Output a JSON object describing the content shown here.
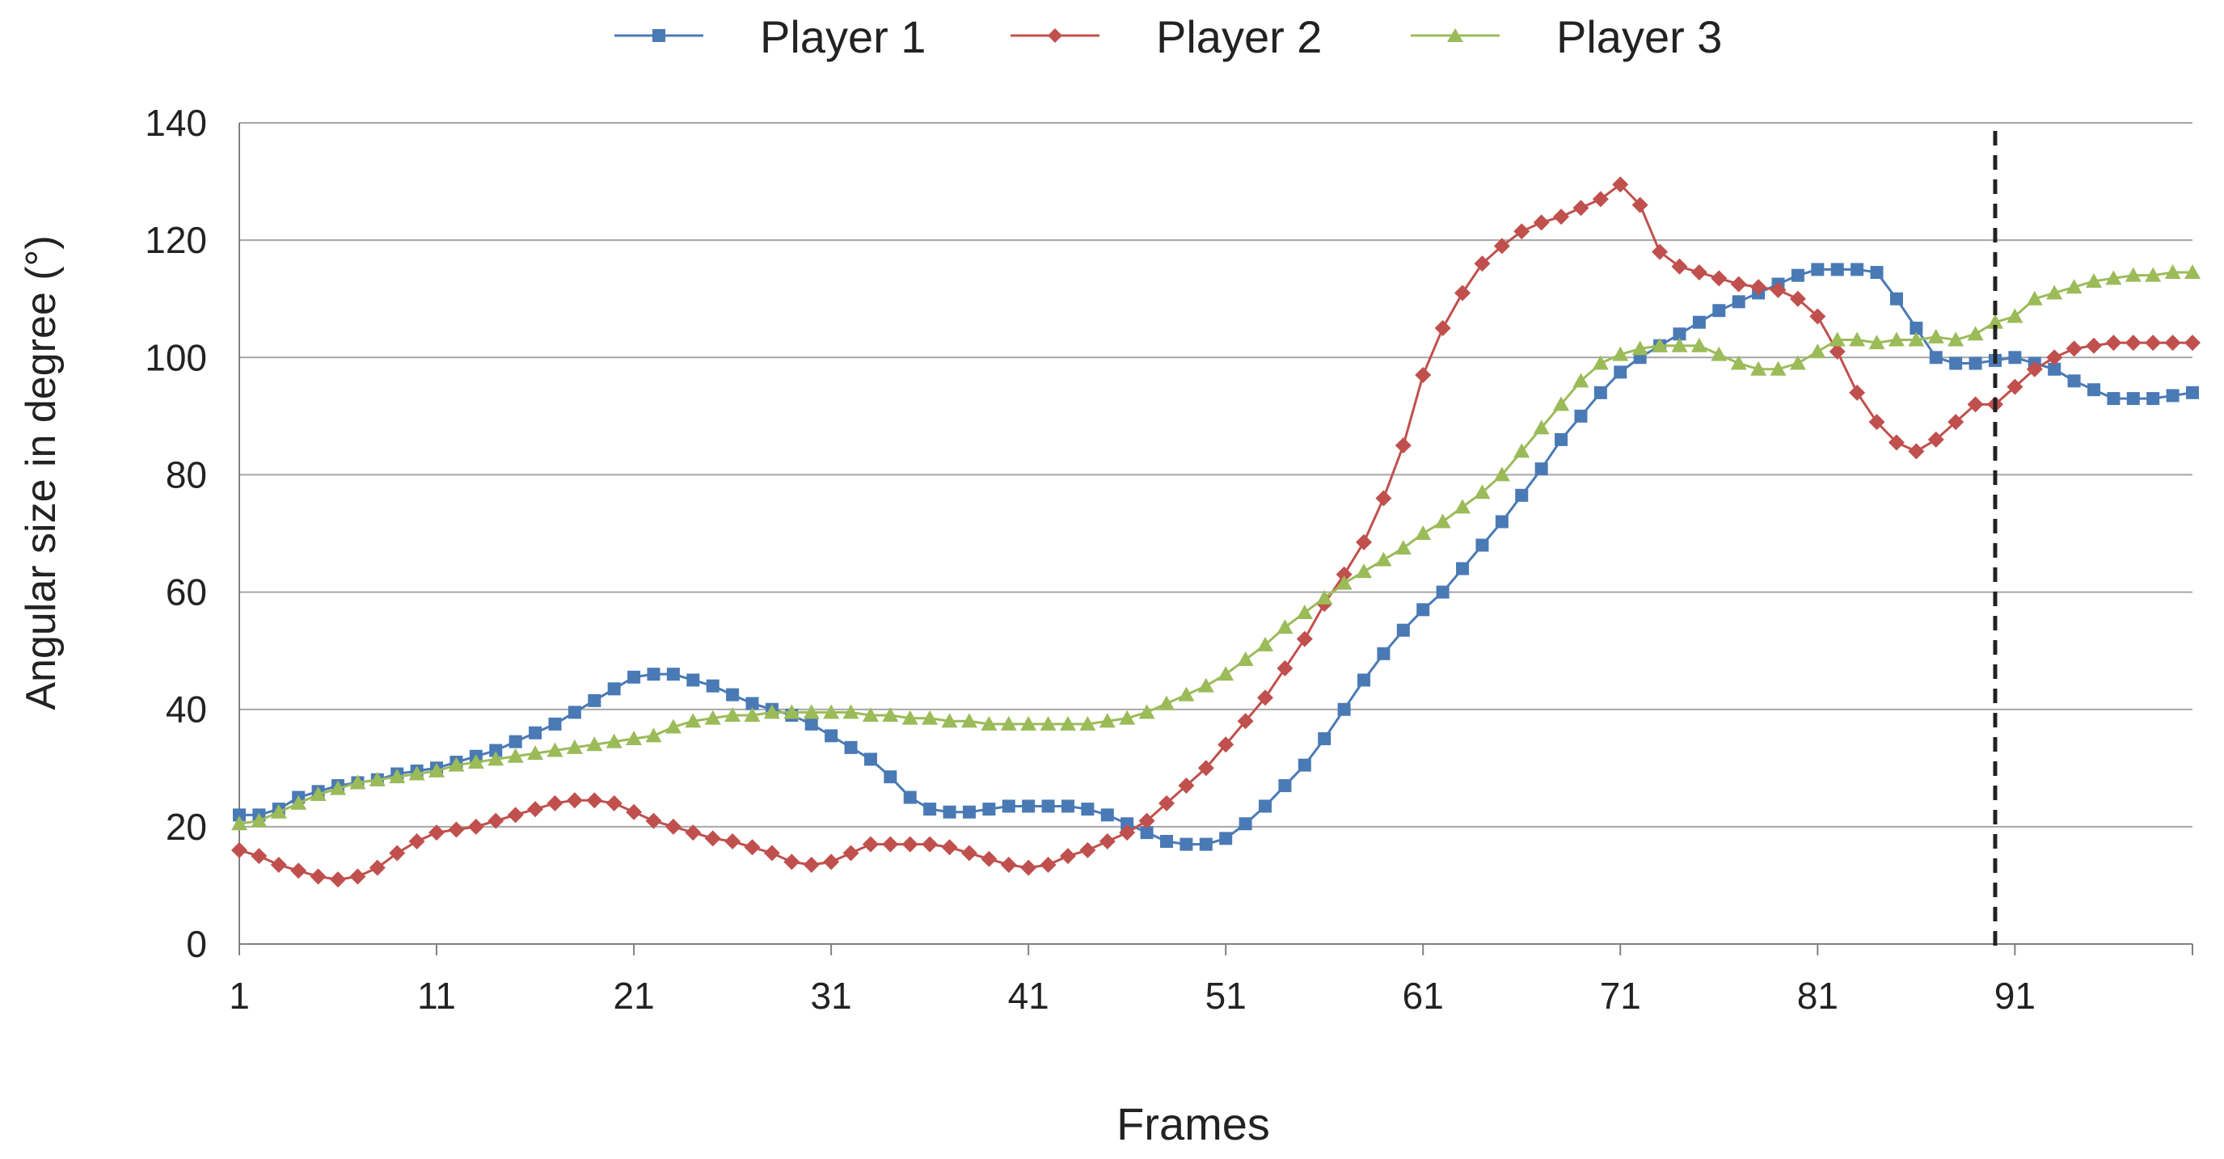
{
  "chart_data": {
    "type": "line",
    "xlabel": "Frames",
    "ylabel": "Angular size in degree (°)",
    "ylim": [
      0,
      140
    ],
    "xlim": [
      1,
      100
    ],
    "yticks": [
      0,
      20,
      40,
      60,
      80,
      100,
      120,
      140
    ],
    "xticks": [
      1,
      11,
      21,
      31,
      41,
      51,
      61,
      71,
      81,
      91
    ],
    "grid": "horizontal",
    "legend_position": "top-center",
    "vline_x": 90,
    "x": [
      1,
      2,
      3,
      4,
      5,
      6,
      7,
      8,
      9,
      10,
      11,
      12,
      13,
      14,
      15,
      16,
      17,
      18,
      19,
      20,
      21,
      22,
      23,
      24,
      25,
      26,
      27,
      28,
      29,
      30,
      31,
      32,
      33,
      34,
      35,
      36,
      37,
      38,
      39,
      40,
      41,
      42,
      43,
      44,
      45,
      46,
      47,
      48,
      49,
      50,
      51,
      52,
      53,
      54,
      55,
      56,
      57,
      58,
      59,
      60,
      61,
      62,
      63,
      64,
      65,
      66,
      67,
      68,
      69,
      70,
      71,
      72,
      73,
      74,
      75,
      76,
      77,
      78,
      79,
      80,
      81,
      82,
      83,
      84,
      85,
      86,
      87,
      88,
      89,
      90,
      91,
      92,
      93,
      94,
      95,
      96,
      97,
      98,
      99,
      100
    ],
    "series": [
      {
        "name": "Player 1",
        "color": "#4a7ab5",
        "marker": "square",
        "values": [
          22,
          22,
          23,
          25,
          26,
          27,
          27.5,
          28,
          29,
          29.5,
          30,
          31,
          32,
          33,
          34.5,
          36,
          37.5,
          39.5,
          41.5,
          43.5,
          45.5,
          46,
          46,
          45,
          44,
          42.5,
          41,
          40,
          39,
          37.5,
          35.5,
          33.5,
          31.5,
          28.5,
          25,
          23,
          22.5,
          22.5,
          23,
          23.5,
          23.5,
          23.5,
          23.5,
          23,
          22,
          20.5,
          19,
          17.5,
          17,
          17,
          18,
          20.5,
          23.5,
          27,
          30.5,
          35,
          40,
          45,
          49.5,
          53.5,
          57,
          60,
          64,
          68,
          72,
          76.5,
          81,
          86,
          90,
          94,
          97.5,
          100,
          102,
          104,
          106,
          108,
          109.5,
          111,
          112.5,
          114,
          115,
          115,
          115,
          114.5,
          110,
          105,
          100,
          99,
          99,
          99.5,
          100,
          99,
          98,
          96,
          94.5,
          93,
          93,
          93,
          93.5,
          94
        ]
      },
      {
        "name": "Player 2",
        "color": "#c0504d",
        "marker": "diamond",
        "values": [
          16,
          15,
          13.5,
          12.5,
          11.5,
          11,
          11.5,
          13,
          15.5,
          17.5,
          19,
          19.5,
          20,
          21,
          22,
          23,
          24,
          24.5,
          24.5,
          24,
          22.5,
          21,
          20,
          19,
          18,
          17.5,
          16.5,
          15.5,
          14,
          13.5,
          14,
          15.5,
          17,
          17,
          17,
          17,
          16.5,
          15.5,
          14.5,
          13.5,
          13,
          13.5,
          15,
          16,
          17.5,
          19,
          21,
          24,
          27,
          30,
          34,
          38,
          42,
          47,
          52,
          58,
          63,
          68.5,
          76,
          85,
          97,
          105,
          111,
          116,
          119,
          121.5,
          123,
          124,
          125.5,
          127,
          129.5,
          126,
          118,
          115.5,
          114.5,
          113.5,
          112.5,
          112,
          111.5,
          110,
          107,
          101,
          94,
          89,
          85.5,
          84,
          86,
          89,
          92,
          92,
          95,
          98,
          100,
          101.5,
          102,
          102.5,
          102.5,
          102.5,
          102.5,
          102.5
        ]
      },
      {
        "name": "Player 3",
        "color": "#9bbb59",
        "marker": "triangle",
        "values": [
          20.5,
          21,
          22.5,
          24,
          25.5,
          26.5,
          27.5,
          28,
          28.5,
          29,
          29.5,
          30.5,
          31,
          31.5,
          32,
          32.5,
          33,
          33.5,
          34,
          34.5,
          35,
          35.5,
          37,
          38,
          38.5,
          39,
          39,
          39.5,
          39.5,
          39.5,
          39.5,
          39.5,
          39,
          39,
          38.5,
          38.5,
          38,
          38,
          37.5,
          37.5,
          37.5,
          37.5,
          37.5,
          37.5,
          38,
          38.5,
          39.5,
          41,
          42.5,
          44,
          46,
          48.5,
          51,
          54,
          56.5,
          59,
          61.5,
          63.5,
          65.5,
          67.5,
          70,
          72,
          74.5,
          77,
          80,
          84,
          88,
          92,
          96,
          99,
          100.5,
          101.5,
          102,
          102,
          102,
          100.5,
          99,
          98,
          98,
          99,
          101,
          103,
          103,
          102.5,
          103,
          103,
          103.5,
          103,
          104,
          106,
          107,
          110,
          111,
          112,
          113,
          113.5,
          114,
          114,
          114.5,
          114.5
        ]
      }
    ]
  }
}
